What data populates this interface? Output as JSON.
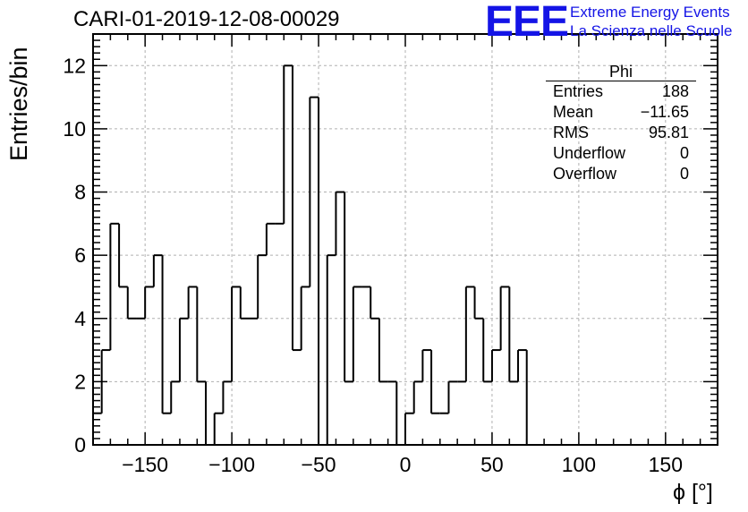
{
  "header": {
    "title": "CARI-01-2019-12-08-00029",
    "logo_text": "EEE",
    "logo_line1": "Extreme Energy Events",
    "logo_line2": "La Scienza nelle Scuole"
  },
  "stats_box": {
    "name": "Phi",
    "rows": [
      {
        "label": "Entries",
        "value": "188"
      },
      {
        "label": "Mean",
        "value": "−11.65"
      },
      {
        "label": "RMS",
        "value": "95.81"
      },
      {
        "label": "Underflow",
        "value": "0"
      },
      {
        "label": "Overflow",
        "value": "0"
      }
    ]
  },
  "colors": {
    "logo": "#1414e6",
    "line": "#000000",
    "grid": "#b0b0b0"
  },
  "chart_data": {
    "type": "histogram",
    "xlabel": "ϕ [°]",
    "ylabel": "Entries/bin",
    "xlim": [
      -180,
      180
    ],
    "ylim": [
      0,
      13
    ],
    "grid": true,
    "bin_width": 5,
    "x_ticks": [
      -150,
      -100,
      -50,
      0,
      50,
      100,
      150
    ],
    "x_tick_labels": [
      "−150",
      "−100",
      "−50",
      "0",
      "50",
      "100",
      "150"
    ],
    "y_ticks": [
      0,
      2,
      4,
      6,
      8,
      10,
      12
    ],
    "y_tick_labels": [
      "0",
      "2",
      "4",
      "6",
      "8",
      "10",
      "12"
    ],
    "bin_edges_start": -180,
    "counts": [
      1,
      3,
      7,
      5,
      4,
      4,
      5,
      6,
      1,
      2,
      4,
      5,
      2,
      0,
      1,
      2,
      5,
      4,
      4,
      6,
      7,
      7,
      12,
      3,
      5,
      11,
      0,
      6,
      8,
      2,
      5,
      5,
      4,
      2,
      2,
      0,
      1,
      2,
      3,
      1,
      1,
      2,
      2,
      5,
      4,
      2,
      3,
      5,
      2,
      3,
      0
    ]
  }
}
